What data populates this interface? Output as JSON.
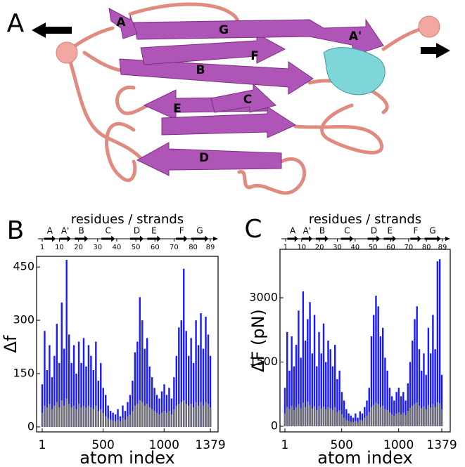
{
  "panel_a": {
    "label": "A",
    "strands": [
      "A",
      "G",
      "A'",
      "F",
      "B",
      "C",
      "E",
      "D"
    ]
  },
  "chart_data": [
    {
      "type": "spike",
      "panel_label": "B",
      "xlabel": "atom index",
      "ylabel": "Δf",
      "top_axis": {
        "label": "residues / strands",
        "lim": [
          1,
          89
        ],
        "ticks": [
          1,
          10,
          20,
          30,
          40,
          50,
          60,
          70,
          80,
          89
        ],
        "strands": [
          {
            "name": "A",
            "start": 2,
            "end": 8
          },
          {
            "name": "A'",
            "start": 10,
            "end": 16
          },
          {
            "name": "B",
            "start": 18,
            "end": 25
          },
          {
            "name": "C",
            "start": 32,
            "end": 39
          },
          {
            "name": "D",
            "start": 47,
            "end": 54
          },
          {
            "name": "E",
            "start": 56,
            "end": 63
          },
          {
            "name": "F",
            "start": 71,
            "end": 77
          },
          {
            "name": "G",
            "start": 79,
            "end": 88
          }
        ]
      },
      "xlim": [
        -45,
        1442
      ],
      "ylim": [
        -14,
        480
      ],
      "xticks": [
        1,
        500,
        1000,
        1379
      ],
      "yticks": [
        0,
        150,
        300,
        450
      ],
      "x": [
        1,
        21,
        41,
        61,
        81,
        101,
        121,
        141,
        161,
        181,
        201,
        221,
        241,
        261,
        281,
        301,
        321,
        341,
        361,
        381,
        401,
        421,
        441,
        461,
        481,
        501,
        521,
        541,
        561,
        581,
        601,
        621,
        641,
        661,
        681,
        701,
        721,
        741,
        761,
        781,
        801,
        821,
        841,
        861,
        881,
        901,
        921,
        941,
        961,
        981,
        1001,
        1021,
        1041,
        1061,
        1081,
        1101,
        1121,
        1141,
        1161,
        1181,
        1201,
        1221,
        1241,
        1261,
        1281,
        1301,
        1321,
        1341,
        1361,
        1379
      ],
      "series": [
        {
          "color": "#1a1aff",
          "values": [
            120,
            270,
            160,
            230,
            140,
            200,
            290,
            180,
            350,
            220,
            470,
            260,
            180,
            230,
            150,
            240,
            180,
            250,
            170,
            230,
            200,
            160,
            240,
            130,
            180,
            110,
            90,
            60,
            45,
            40,
            35,
            50,
            30,
            60,
            45,
            70,
            90,
            130,
            210,
            240,
            365,
            300,
            220,
            250,
            170,
            140,
            110,
            90,
            80,
            100,
            120,
            90,
            110,
            80,
            140,
            200,
            280,
            300,
            445,
            270,
            200,
            250,
            180,
            300,
            230,
            320,
            220,
            310,
            260,
            200
          ]
        },
        {
          "color": "#6e6e6e",
          "values": [
            40,
            60,
            55,
            65,
            50,
            60,
            70,
            55,
            75,
            60,
            80,
            65,
            55,
            60,
            50,
            65,
            55,
            60,
            55,
            60,
            55,
            50,
            60,
            45,
            50,
            40,
            30,
            25,
            20,
            18,
            15,
            20,
            15,
            25,
            20,
            30,
            35,
            45,
            60,
            65,
            75,
            70,
            60,
            65,
            55,
            50,
            45,
            40,
            35,
            40,
            45,
            40,
            45,
            35,
            50,
            60,
            65,
            70,
            75,
            65,
            60,
            65,
            55,
            70,
            60,
            70,
            60,
            70,
            65,
            55
          ]
        }
      ]
    },
    {
      "type": "spike",
      "panel_label": "C",
      "xlabel": "atom index",
      "ylabel": "ΔF (pN)",
      "top_axis": {
        "label": "residues / strands",
        "lim": [
          1,
          89
        ],
        "ticks": [
          1,
          10,
          20,
          30,
          40,
          50,
          60,
          70,
          80,
          89
        ],
        "strands": [
          {
            "name": "A",
            "start": 2,
            "end": 8
          },
          {
            "name": "A'",
            "start": 10,
            "end": 16
          },
          {
            "name": "B",
            "start": 18,
            "end": 25
          },
          {
            "name": "C",
            "start": 32,
            "end": 39
          },
          {
            "name": "D",
            "start": 47,
            "end": 54
          },
          {
            "name": "E",
            "start": 56,
            "end": 63
          },
          {
            "name": "F",
            "start": 71,
            "end": 77
          },
          {
            "name": "G",
            "start": 79,
            "end": 88
          }
        ]
      },
      "xlim": [
        -42,
        1453
      ],
      "ylim": [
        -131,
        4131
      ],
      "xticks": [
        1,
        500,
        1000,
        1379
      ],
      "yticks": [
        0,
        1500,
        3000
      ],
      "x": [
        1,
        21,
        41,
        61,
        81,
        101,
        121,
        141,
        161,
        181,
        201,
        221,
        241,
        261,
        281,
        301,
        321,
        341,
        361,
        381,
        401,
        421,
        441,
        461,
        481,
        501,
        521,
        541,
        561,
        581,
        601,
        621,
        641,
        661,
        681,
        701,
        721,
        741,
        761,
        781,
        801,
        821,
        841,
        861,
        881,
        901,
        921,
        941,
        961,
        981,
        1001,
        1021,
        1041,
        1061,
        1081,
        1101,
        1121,
        1141,
        1161,
        1181,
        1201,
        1221,
        1241,
        1261,
        1281,
        1301,
        1321,
        1341,
        1361,
        1379
      ],
      "series": [
        {
          "color": "#1a1aff",
          "values": [
            900,
            2200,
            1300,
            2100,
            1400,
            1900,
            2700,
            1600,
            3150,
            2000,
            2500,
            2900,
            1700,
            2600,
            1400,
            2200,
            1700,
            2400,
            1500,
            2000,
            1800,
            1400,
            1900,
            1100,
            1300,
            800,
            600,
            400,
            300,
            250,
            200,
            300,
            200,
            350,
            300,
            450,
            600,
            900,
            2100,
            2600,
            3050,
            2800,
            2100,
            2300,
            1600,
            1300,
            900,
            700,
            600,
            800,
            900,
            700,
            800,
            600,
            1000,
            1500,
            2000,
            2500,
            2800,
            1800,
            1300,
            1700,
            1200,
            2300,
            1700,
            2600,
            1800,
            3850,
            3900,
            1200
          ]
        },
        {
          "color": "#6e6e6e",
          "values": [
            300,
            450,
            400,
            480,
            380,
            450,
            520,
            420,
            550,
            450,
            580,
            500,
            420,
            470,
            380,
            480,
            420,
            460,
            400,
            450,
            420,
            380,
            450,
            330,
            370,
            280,
            200,
            150,
            120,
            110,
            100,
            120,
            100,
            150,
            130,
            200,
            250,
            330,
            450,
            500,
            560,
            520,
            450,
            480,
            400,
            380,
            330,
            280,
            250,
            300,
            330,
            280,
            320,
            260,
            360,
            430,
            480,
            520,
            560,
            480,
            420,
            470,
            400,
            500,
            440,
            520,
            450,
            560,
            540,
            400
          ]
        }
      ]
    }
  ]
}
